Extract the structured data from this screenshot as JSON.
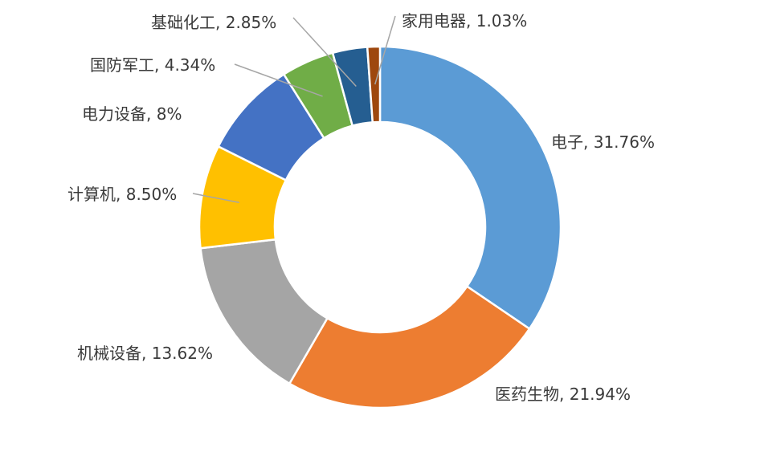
{
  "chart_data": {
    "type": "donut",
    "title": "",
    "start_angle_deg": 0,
    "direction": "clockwise",
    "slices": [
      {
        "name": "电子",
        "value": 31.76,
        "color": "#5B9BD5",
        "label": "电子, 31.76%"
      },
      {
        "name": "医药生物",
        "value": 21.94,
        "color": "#ED7D31",
        "label": "医药生物, 21.94%"
      },
      {
        "name": "机械设备",
        "value": 13.62,
        "color": "#A5A5A5",
        "label": "机械设备, 13.62%"
      },
      {
        "name": "计算机",
        "value": 8.5,
        "color": "#FFC000",
        "label": "计算机, 8.50%"
      },
      {
        "name": "电力设备",
        "value": 8,
        "color": "#4472C4",
        "label": "电力设备, 8%"
      },
      {
        "name": "国防军工",
        "value": 4.34,
        "color": "#70AD47",
        "label": "国防军工, 4.34%"
      },
      {
        "name": "基础化工",
        "value": 2.85,
        "color": "#255E91",
        "label": "基础化工, 2.85%"
      },
      {
        "name": "家用电器",
        "value": 1.03,
        "color": "#9E480E",
        "label": "家用电器, 1.03%"
      }
    ]
  }
}
